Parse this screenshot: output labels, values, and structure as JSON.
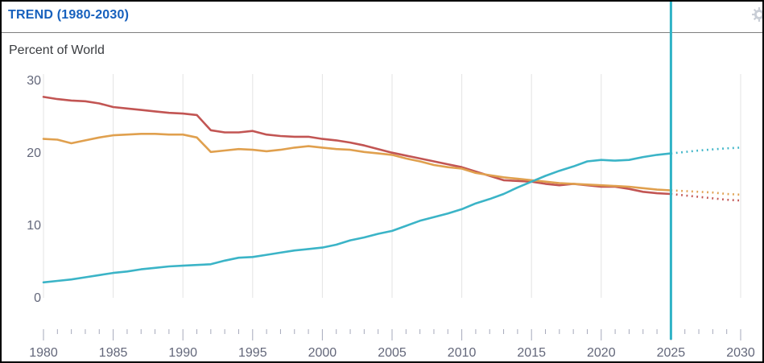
{
  "header": {
    "title": "TREND (1980-2030)",
    "gear_icon": "settings-gear"
  },
  "colors": {
    "title_blue": "#1660bd",
    "divider_gray": "#7e7e7e",
    "red": "#c25553",
    "orange": "#e0a04e",
    "teal": "#3bb4c7",
    "now_line": "#2fb3c6",
    "grid": "#e3e3e3",
    "tick": "#a6a9bb",
    "axis_label": "#63677a",
    "text_dark": "#3a3c40",
    "gear_gray": "#c9ced6"
  },
  "chart_data": {
    "type": "line",
    "title": "TREND (1980-2030)",
    "ylabel": "Percent of World",
    "xlabel": "",
    "xlim": [
      1980,
      2030
    ],
    "ylim": [
      0,
      30
    ],
    "y_ticks": [
      0,
      10,
      20,
      30
    ],
    "x_ticks_labeled": [
      1980,
      1985,
      1990,
      1995,
      2000,
      2005,
      2010,
      2015,
      2020,
      2025,
      2030
    ],
    "minor_ticks": "every year 1980-2030",
    "grid": "vertical gridlines at labeled years only",
    "legend": "none",
    "now_line_x": 2025,
    "projection_style": "dotted after 2025",
    "x_solid": [
      1980,
      1981,
      1982,
      1983,
      1984,
      1985,
      1986,
      1987,
      1988,
      1989,
      1990,
      1991,
      1992,
      1993,
      1994,
      1995,
      1996,
      1997,
      1998,
      1999,
      2000,
      2001,
      2002,
      2003,
      2004,
      2005,
      2006,
      2007,
      2008,
      2009,
      2010,
      2011,
      2012,
      2013,
      2014,
      2015,
      2016,
      2017,
      2018,
      2019,
      2020,
      2021,
      2022,
      2023,
      2024,
      2025
    ],
    "x_projection": [
      2025,
      2026,
      2027,
      2028,
      2029,
      2030
    ],
    "series": [
      {
        "name": "red-line",
        "color": "#c25553",
        "values": [
          27.7,
          27.4,
          27.2,
          27.1,
          26.8,
          26.3,
          26.1,
          25.9,
          25.7,
          25.5,
          25.4,
          25.2,
          23.1,
          22.8,
          22.8,
          23.0,
          22.5,
          22.3,
          22.2,
          22.2,
          21.9,
          21.7,
          21.4,
          21.0,
          20.5,
          20.0,
          19.6,
          19.2,
          18.8,
          18.4,
          18.0,
          17.4,
          16.8,
          16.2,
          16.1,
          16.0,
          15.7,
          15.5,
          15.7,
          15.5,
          15.3,
          15.3,
          15.0,
          14.6,
          14.4,
          14.3
        ],
        "projection_values": [
          14.3,
          14.1,
          13.9,
          13.7,
          13.5,
          13.4
        ]
      },
      {
        "name": "orange-line",
        "color": "#e0a04e",
        "values": [
          21.9,
          21.8,
          21.3,
          21.7,
          22.1,
          22.4,
          22.5,
          22.6,
          22.6,
          22.5,
          22.5,
          22.1,
          20.1,
          20.3,
          20.5,
          20.4,
          20.2,
          20.4,
          20.7,
          20.9,
          20.7,
          20.5,
          20.4,
          20.1,
          19.9,
          19.7,
          19.2,
          18.8,
          18.3,
          18.0,
          17.8,
          17.2,
          16.9,
          16.6,
          16.4,
          16.2,
          16.0,
          15.8,
          15.7,
          15.6,
          15.5,
          15.4,
          15.3,
          15.1,
          14.9,
          14.8
        ],
        "projection_values": [
          14.8,
          14.7,
          14.6,
          14.5,
          14.3,
          14.2
        ]
      },
      {
        "name": "teal-line",
        "color": "#3bb4c7",
        "values": [
          2.1,
          2.3,
          2.5,
          2.8,
          3.1,
          3.4,
          3.6,
          3.9,
          4.1,
          4.3,
          4.4,
          4.5,
          4.6,
          5.1,
          5.5,
          5.6,
          5.9,
          6.2,
          6.5,
          6.7,
          6.9,
          7.3,
          7.9,
          8.3,
          8.8,
          9.2,
          9.9,
          10.6,
          11.1,
          11.6,
          12.2,
          13.0,
          13.6,
          14.3,
          15.2,
          16.0,
          16.8,
          17.5,
          18.1,
          18.8,
          19.0,
          18.9,
          19.0,
          19.4,
          19.7,
          19.9
        ],
        "projection_values": [
          19.9,
          20.1,
          20.3,
          20.45,
          20.6,
          20.7
        ]
      }
    ]
  }
}
